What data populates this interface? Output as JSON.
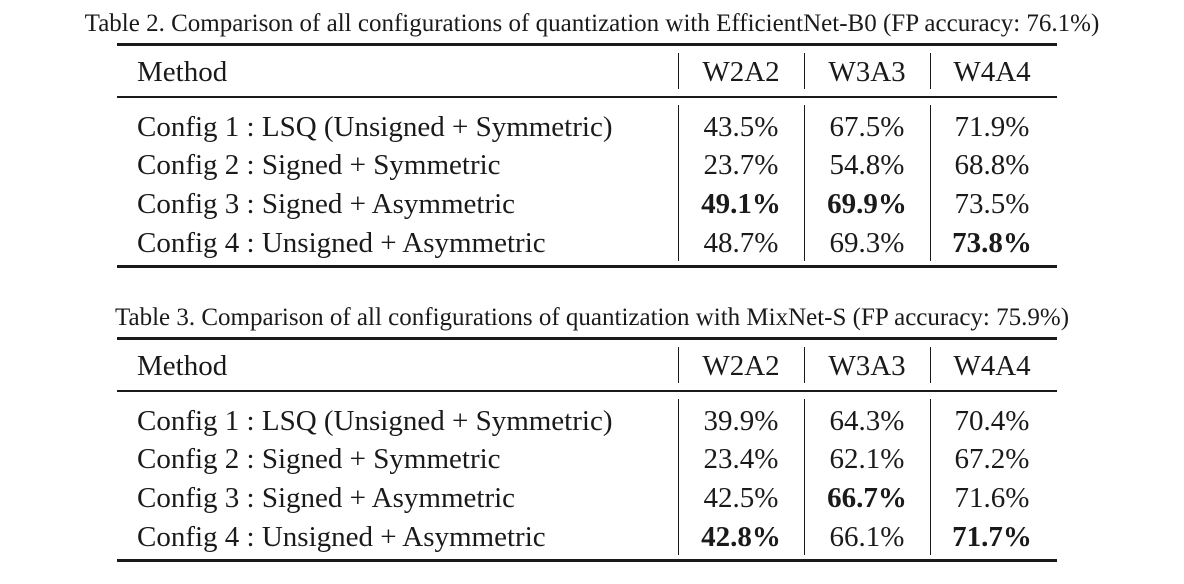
{
  "table2": {
    "caption": "Table 2. Comparison of all configurations of quantization with EfficientNet-B0 (FP accuracy: 76.1%)",
    "headers": [
      "Method",
      "W2A2",
      "W3A3",
      "W4A4"
    ],
    "rows": [
      {
        "method": "Config 1 : LSQ (Unsigned + Symmetric)",
        "w2a2": "43.5%",
        "w3a3": "67.5%",
        "w4a4": "71.9%",
        "bold": []
      },
      {
        "method": "Config 2 : Signed + Symmetric",
        "w2a2": "23.7%",
        "w3a3": "54.8%",
        "w4a4": "68.8%",
        "bold": []
      },
      {
        "method": "Config 3 : Signed + Asymmetric",
        "w2a2": "49.1%",
        "w3a3": "69.9%",
        "w4a4": "73.5%",
        "bold": [
          "w2a2",
          "w3a3"
        ]
      },
      {
        "method": "Config 4 : Unsigned + Asymmetric",
        "w2a2": "48.7%",
        "w3a3": "69.3%",
        "w4a4": "73.8%",
        "bold": [
          "w4a4"
        ]
      }
    ]
  },
  "table3": {
    "caption": "Table 3. Comparison of all configurations of quantization with MixNet-S (FP accuracy: 75.9%)",
    "headers": [
      "Method",
      "W2A2",
      "W3A3",
      "W4A4"
    ],
    "rows": [
      {
        "method": "Config 1 : LSQ (Unsigned + Symmetric)",
        "w2a2": "39.9%",
        "w3a3": "64.3%",
        "w4a4": "70.4%",
        "bold": []
      },
      {
        "method": "Config 2 : Signed + Symmetric",
        "w2a2": "23.4%",
        "w3a3": "62.1%",
        "w4a4": "67.2%",
        "bold": []
      },
      {
        "method": "Config 3 : Signed + Asymmetric",
        "w2a2": "42.5%",
        "w3a3": "66.7%",
        "w4a4": "71.6%",
        "bold": [
          "w3a3"
        ]
      },
      {
        "method": "Config 4 : Unsigned + Asymmetric",
        "w2a2": "42.8%",
        "w3a3": "66.1%",
        "w4a4": "71.7%",
        "bold": [
          "w2a2",
          "w4a4"
        ]
      }
    ]
  }
}
